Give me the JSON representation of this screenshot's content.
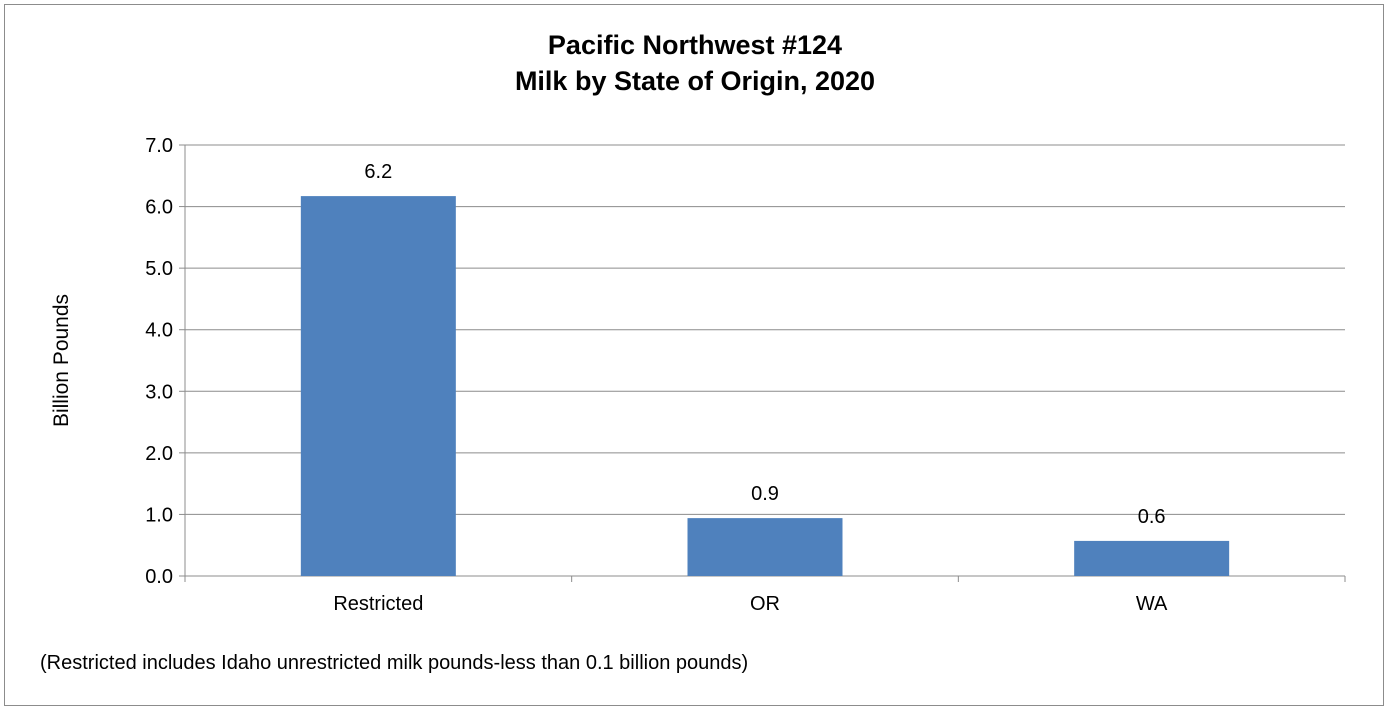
{
  "chart_data": {
    "type": "bar",
    "title": [
      "Pacific Northwest #124",
      "Milk by State of Origin, 2020"
    ],
    "xlabel": "",
    "ylabel": "Billion Pounds",
    "categories": [
      "Restricted",
      "OR",
      "WA"
    ],
    "values": [
      6.17,
      0.94,
      0.57
    ],
    "data_labels": [
      "6.2",
      "0.9",
      "0.6"
    ],
    "ylim": [
      0,
      7
    ],
    "yticks": [
      "0.0",
      "1.0",
      "2.0",
      "3.0",
      "4.0",
      "5.0",
      "6.0",
      "7.0"
    ],
    "grid": true,
    "legend": "none",
    "bar_color": "#4f81bd",
    "footnote": "(Restricted includes Idaho unrestricted milk pounds-less than 0.1 billion pounds)"
  }
}
